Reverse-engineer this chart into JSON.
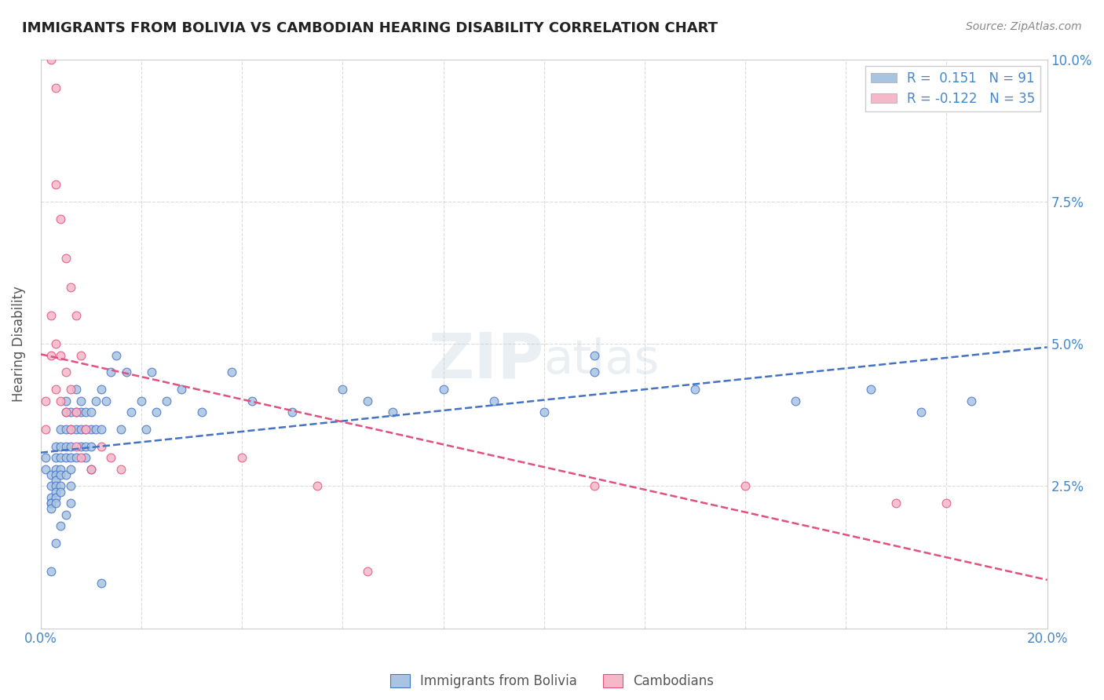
{
  "title": "IMMIGRANTS FROM BOLIVIA VS CAMBODIAN HEARING DISABILITY CORRELATION CHART",
  "source": "Source: ZipAtlas.com",
  "ylabel": "Hearing Disability",
  "ylabel_right_ticks": [
    "2.5%",
    "5.0%",
    "7.5%",
    "10.0%"
  ],
  "ylabel_right_vals": [
    0.025,
    0.05,
    0.075,
    0.1
  ],
  "xmin": 0.0,
  "xmax": 0.2,
  "ymin": 0.0,
  "ymax": 0.1,
  "series1_label": "Immigrants from Bolivia",
  "series1_R": 0.151,
  "series1_N": 91,
  "series1_color": "#a8c4e0",
  "series1_line_color": "#4472c4",
  "series2_label": "Cambodians",
  "series2_R": -0.122,
  "series2_N": 35,
  "series2_color": "#f4b8c8",
  "series2_line_color": "#e05080",
  "background_color": "#ffffff",
  "grid_color": "#cccccc",
  "title_color": "#222222",
  "bolivia_x": [
    0.001,
    0.001,
    0.002,
    0.002,
    0.002,
    0.002,
    0.002,
    0.002,
    0.003,
    0.003,
    0.003,
    0.003,
    0.003,
    0.003,
    0.003,
    0.003,
    0.003,
    0.004,
    0.004,
    0.004,
    0.004,
    0.004,
    0.004,
    0.004,
    0.005,
    0.005,
    0.005,
    0.005,
    0.005,
    0.005,
    0.006,
    0.006,
    0.006,
    0.006,
    0.006,
    0.006,
    0.007,
    0.007,
    0.007,
    0.007,
    0.008,
    0.008,
    0.008,
    0.008,
    0.009,
    0.009,
    0.009,
    0.009,
    0.01,
    0.01,
    0.01,
    0.01,
    0.011,
    0.011,
    0.012,
    0.012,
    0.013,
    0.014,
    0.015,
    0.016,
    0.017,
    0.018,
    0.02,
    0.021,
    0.022,
    0.023,
    0.025,
    0.028,
    0.032,
    0.038,
    0.042,
    0.05,
    0.06,
    0.065,
    0.07,
    0.08,
    0.09,
    0.1,
    0.11,
    0.13,
    0.15,
    0.165,
    0.175,
    0.185,
    0.11,
    0.004,
    0.005,
    0.003,
    0.006,
    0.002,
    0.012
  ],
  "bolivia_y": [
    0.03,
    0.028,
    0.027,
    0.025,
    0.023,
    0.022,
    0.022,
    0.021,
    0.032,
    0.03,
    0.028,
    0.027,
    0.026,
    0.025,
    0.024,
    0.023,
    0.022,
    0.035,
    0.032,
    0.03,
    0.028,
    0.027,
    0.025,
    0.024,
    0.04,
    0.038,
    0.035,
    0.032,
    0.03,
    0.027,
    0.038,
    0.035,
    0.032,
    0.03,
    0.028,
    0.025,
    0.042,
    0.038,
    0.035,
    0.03,
    0.04,
    0.038,
    0.035,
    0.032,
    0.038,
    0.035,
    0.032,
    0.03,
    0.038,
    0.035,
    0.032,
    0.028,
    0.04,
    0.035,
    0.042,
    0.035,
    0.04,
    0.045,
    0.048,
    0.035,
    0.045,
    0.038,
    0.04,
    0.035,
    0.045,
    0.038,
    0.04,
    0.042,
    0.038,
    0.045,
    0.04,
    0.038,
    0.042,
    0.04,
    0.038,
    0.042,
    0.04,
    0.038,
    0.045,
    0.042,
    0.04,
    0.042,
    0.038,
    0.04,
    0.048,
    0.018,
    0.02,
    0.015,
    0.022,
    0.01,
    0.008
  ],
  "cambodian_x": [
    0.001,
    0.001,
    0.002,
    0.002,
    0.003,
    0.003,
    0.004,
    0.004,
    0.005,
    0.005,
    0.006,
    0.006,
    0.007,
    0.007,
    0.008,
    0.009,
    0.01,
    0.012,
    0.014,
    0.016,
    0.04,
    0.055,
    0.11,
    0.14,
    0.17,
    0.003,
    0.004,
    0.005,
    0.006,
    0.003,
    0.002,
    0.007,
    0.008,
    0.18,
    0.065
  ],
  "cambodian_y": [
    0.04,
    0.035,
    0.055,
    0.048,
    0.05,
    0.042,
    0.048,
    0.04,
    0.045,
    0.038,
    0.035,
    0.042,
    0.038,
    0.032,
    0.03,
    0.035,
    0.028,
    0.032,
    0.03,
    0.028,
    0.03,
    0.025,
    0.025,
    0.025,
    0.022,
    0.078,
    0.072,
    0.065,
    0.06,
    0.095,
    0.1,
    0.055,
    0.048,
    0.022,
    0.01
  ]
}
